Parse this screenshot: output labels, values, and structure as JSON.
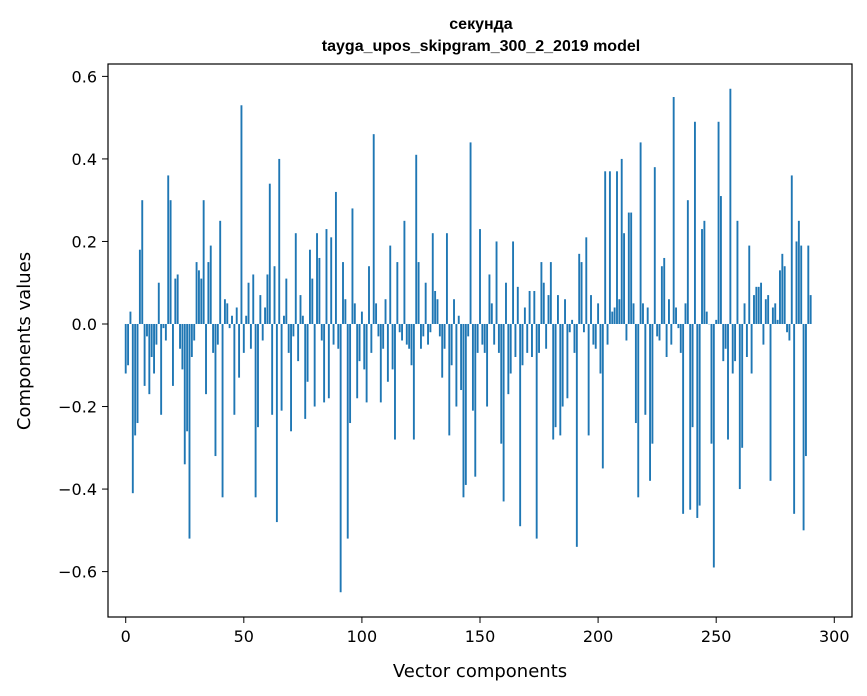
{
  "chart_data": {
    "type": "bar",
    "title": "секунда",
    "subtitle": "tayga_upos_skipgram_300_2_2019 model",
    "xlabel": "Vector components",
    "ylabel": "Components values",
    "xlim": [
      -7.5,
      307.5
    ],
    "ylim": [
      -0.71,
      0.63
    ],
    "xticks": [
      0,
      50,
      100,
      150,
      200,
      250,
      300
    ],
    "yticks": [
      -0.6,
      -0.4,
      -0.2,
      0.0,
      0.2,
      0.4,
      0.6
    ],
    "ytick_labels": [
      "−0.6",
      "−0.4",
      "−0.2",
      "0.0",
      "0.2",
      "0.4",
      "0.6"
    ],
    "bar_color": "#1f77b4",
    "grid": false,
    "values": [
      -0.12,
      -0.1,
      0.03,
      -0.41,
      -0.27,
      -0.24,
      0.18,
      0.3,
      -0.15,
      -0.03,
      -0.17,
      -0.08,
      -0.12,
      -0.05,
      0.1,
      -0.22,
      -0.01,
      -0.04,
      0.36,
      0.3,
      -0.15,
      0.11,
      0.12,
      -0.06,
      -0.11,
      -0.34,
      -0.26,
      -0.52,
      -0.08,
      -0.04,
      0.15,
      0.13,
      0.11,
      0.3,
      -0.17,
      0.15,
      0.19,
      -0.07,
      -0.32,
      -0.05,
      0.25,
      -0.42,
      0.06,
      0.05,
      -0.01,
      0.02,
      -0.22,
      0.04,
      -0.13,
      0.53,
      -0.07,
      0.02,
      0.1,
      -0.06,
      0.12,
      -0.42,
      -0.25,
      0.07,
      -0.04,
      0.04,
      0.12,
      0.34,
      -0.22,
      0.14,
      -0.48,
      0.4,
      -0.21,
      0.02,
      0.11,
      -0.07,
      -0.26,
      -0.03,
      0.22,
      -0.09,
      0.07,
      0.02,
      -0.23,
      -0.14,
      0.18,
      0.11,
      -0.2,
      0.22,
      0.16,
      -0.04,
      -0.19,
      0.23,
      -0.18,
      0.21,
      -0.05,
      0.32,
      -0.06,
      -0.65,
      0.15,
      0.06,
      -0.52,
      -0.24,
      0.28,
      0.05,
      -0.18,
      -0.09,
      0.03,
      -0.11,
      -0.19,
      0.14,
      -0.07,
      0.46,
      0.05,
      -0.03,
      -0.19,
      -0.06,
      0.06,
      -0.14,
      0.19,
      -0.11,
      -0.28,
      0.15,
      -0.02,
      -0.04,
      0.25,
      -0.05,
      -0.06,
      -0.1,
      -0.28,
      0.41,
      0.15,
      -0.06,
      -0.03,
      0.1,
      -0.05,
      -0.02,
      0.22,
      0.08,
      0.06,
      -0.03,
      -0.13,
      -0.06,
      0.22,
      -0.27,
      -0.1,
      0.06,
      -0.2,
      0.02,
      -0.16,
      -0.42,
      -0.39,
      -0.03,
      0.44,
      -0.21,
      -0.37,
      -0.07,
      0.23,
      -0.05,
      -0.07,
      -0.2,
      0.12,
      0.05,
      -0.05,
      0.2,
      -0.07,
      -0.29,
      -0.43,
      0.1,
      -0.17,
      -0.12,
      0.2,
      -0.08,
      0.09,
      -0.49,
      -0.1,
      0.04,
      -0.07,
      0.08,
      -0.08,
      0.08,
      -0.52,
      -0.07,
      0.15,
      0.1,
      -0.06,
      0.07,
      0.15,
      -0.28,
      -0.25,
      0.07,
      -0.27,
      -0.2,
      0.06,
      -0.18,
      -0.02,
      0.01,
      -0.07,
      -0.54,
      0.17,
      0.15,
      -0.02,
      0.21,
      -0.27,
      0.07,
      -0.05,
      -0.06,
      0.05,
      -0.12,
      -0.35,
      0.37,
      -0.05,
      0.37,
      0.03,
      0.04,
      0.37,
      0.06,
      0.4,
      0.22,
      -0.04,
      0.27,
      0.27,
      0.05,
      -0.24,
      -0.42,
      0.44,
      0.05,
      -0.22,
      0.04,
      -0.38,
      -0.29,
      0.38,
      -0.03,
      -0.04,
      0.14,
      0.16,
      -0.08,
      0.06,
      -0.05,
      0.55,
      0.04,
      -0.01,
      -0.07,
      -0.46,
      0.05,
      0.3,
      -0.45,
      -0.25,
      0.49,
      -0.47,
      -0.44,
      0.23,
      0.25,
      0.03,
      0.0,
      -0.29,
      -0.59,
      0.01,
      0.49,
      0.31,
      -0.09,
      -0.06,
      -0.28,
      0.57,
      -0.12,
      -0.09,
      0.25,
      -0.4,
      -0.3,
      0.05,
      -0.08,
      0.19,
      -0.12,
      0.07,
      0.09,
      0.09,
      0.1,
      -0.05,
      0.06,
      0.07,
      -0.38,
      0.04,
      0.05,
      0.01,
      0.13,
      0.17,
      0.14,
      -0.02,
      -0.04,
      0.36,
      -0.46,
      0.2,
      0.25,
      0.19,
      -0.5,
      -0.32,
      0.19,
      0.07
    ]
  }
}
